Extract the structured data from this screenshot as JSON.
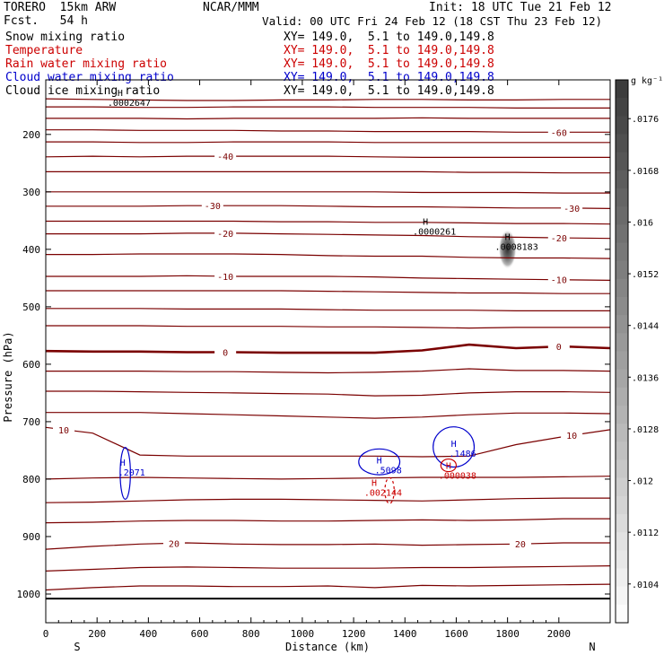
{
  "header": {
    "model": "TORERO  15km ARW",
    "fcst": "Fcst.   54 h",
    "center": "NCAR/MMM",
    "init": "Init: 18 UTC Tue 21 Feb 12",
    "valid": "Valid: 00 UTC Fri 24 Feb 12 (18 CST Thu 23 Feb 12)",
    "fields": [
      {
        "name": "Snow mixing ratio",
        "xy": "XY= 149.0,  5.1 to 149.0,149.8",
        "color": "#000000"
      },
      {
        "name": "Temperature",
        "xy": "XY= 149.0,  5.1 to 149.0,149.8",
        "color": "#cc0000"
      },
      {
        "name": "Rain water mixing ratio",
        "xy": "XY= 149.0,  5.1 to 149.0,149.8",
        "color": "#cc0000"
      },
      {
        "name": "Cloud water mixing ratio",
        "xy": "XY= 149.0,  5.1 to 149.0,149.8",
        "color": "#0000cc"
      },
      {
        "name": "Cloud ice mixing ratio",
        "xy": "XY= 149.0,  5.1 to 149.0,149.8",
        "color": "#000000"
      }
    ]
  },
  "chart_data": {
    "type": "contour",
    "xlabel": "Distance (km)",
    "ylabel": "Pressure (hPa)",
    "x_ticks": [
      "0",
      "200",
      "400",
      "600",
      "800",
      "1000",
      "1200",
      "1400",
      "1600",
      "1800",
      "2000"
    ],
    "y_ticks": [
      "200",
      "300",
      "400",
      "500",
      "600",
      "700",
      "800",
      "900",
      "1000"
    ],
    "xlim": [
      0,
      2200
    ],
    "ylim": [
      1050,
      105
    ],
    "x_end_labels": {
      "left": "S",
      "right": "N"
    },
    "colorbar": {
      "unit": "g kg⁻¹",
      "labels": [
        ".0176",
        ".0168",
        ".016",
        ".0152",
        ".0144",
        ".0136",
        ".0128",
        ".012",
        ".0112",
        ".0104"
      ],
      "values": [
        0.0176,
        0.0168,
        0.016,
        0.0152,
        0.0144,
        0.0136,
        0.0128,
        0.012,
        0.0112,
        0.0104
      ]
    },
    "temperature_contours": [
      {
        "p": [
          138,
          139,
          140,
          141,
          141,
          140,
          140,
          139,
          139,
          140,
          140,
          139,
          139
        ]
      },
      {
        "p": [
          152,
          152,
          153,
          153,
          152,
          152,
          152,
          153,
          153,
          153,
          154,
          154,
          154
        ]
      },
      {
        "p": [
          172,
          172,
          172,
          173,
          172,
          172,
          172,
          172,
          171,
          172,
          172,
          172,
          172
        ]
      },
      {
        "p": [
          192,
          192,
          193,
          193,
          193,
          194,
          194,
          195,
          195,
          195,
          196,
          196,
          196
        ],
        "label": "-60",
        "label_x": 2000
      },
      {
        "p": [
          213,
          213,
          214,
          214,
          213,
          213,
          213,
          214,
          214,
          214,
          214,
          214,
          214
        ]
      },
      {
        "p": [
          239,
          238,
          239,
          238,
          238,
          238,
          238,
          239,
          240,
          240,
          240,
          240,
          240
        ],
        "label": "-40",
        "label_x": 700
      },
      {
        "p": [
          265,
          265,
          265,
          265,
          265,
          265,
          265,
          265,
          265,
          266,
          266,
          267,
          267
        ]
      },
      {
        "p": [
          300,
          300,
          300,
          300,
          300,
          300,
          300,
          300,
          301,
          301,
          301,
          302,
          302
        ]
      },
      {
        "p": [
          325,
          325,
          325,
          324,
          324,
          324,
          325,
          326,
          326,
          327,
          328,
          328,
          329
        ],
        "label": "-30",
        "label_x": 650,
        "label2": "-30",
        "label2_x": 2050
      },
      {
        "p": [
          351,
          351,
          351,
          351,
          351,
          352,
          352,
          353,
          353,
          354,
          355,
          355,
          356
        ]
      },
      {
        "p": [
          373,
          373,
          373,
          372,
          372,
          373,
          374,
          375,
          376,
          378,
          379,
          380,
          381
        ],
        "label": "-20",
        "label_x": 700,
        "label2": "-20",
        "label2_x": 2000
      },
      {
        "p": [
          409,
          409,
          408,
          408,
          408,
          409,
          411,
          412,
          412,
          414,
          415,
          415,
          416
        ]
      },
      {
        "p": [
          447,
          447,
          447,
          446,
          447,
          447,
          447,
          448,
          450,
          451,
          452,
          453,
          454
        ],
        "label": "-10",
        "label_x": 700,
        "label2": "-10",
        "label2_x": 2000
      },
      {
        "p": [
          472,
          472,
          472,
          472,
          472,
          472,
          473,
          474,
          475,
          476,
          476,
          477,
          477
        ]
      },
      {
        "p": [
          503,
          503,
          503,
          504,
          504,
          504,
          505,
          506,
          506,
          506,
          507,
          507,
          507
        ]
      },
      {
        "p": [
          533,
          533,
          533,
          534,
          534,
          534,
          535,
          535,
          536,
          537,
          536,
          536,
          536
        ]
      },
      {
        "p": [
          577,
          578,
          578,
          579,
          579,
          580,
          580,
          580,
          576,
          566,
          572,
          569,
          572
        ],
        "label": "0",
        "label_x": 700,
        "label2": "0",
        "label2_x": 2000,
        "bold": true
      },
      {
        "p": [
          612,
          612,
          612,
          613,
          613,
          614,
          615,
          614,
          612,
          608,
          611,
          611,
          612
        ]
      },
      {
        "p": [
          647,
          647,
          648,
          649,
          650,
          651,
          652,
          655,
          654,
          650,
          648,
          648,
          649
        ]
      },
      {
        "p": [
          684,
          684,
          684,
          686,
          688,
          690,
          692,
          694,
          692,
          688,
          685,
          685,
          686
        ]
      },
      {
        "p": [
          710,
          720,
          758,
          760,
          760,
          760,
          760,
          760,
          761,
          760,
          740,
          726,
          714
        ],
        "label": "10",
        "label_x": 70,
        "label2": "10",
        "label2_x": 2050
      },
      {
        "p": [
          800,
          798,
          797,
          798,
          799,
          800,
          799,
          798,
          797,
          797,
          797,
          796,
          795
        ]
      },
      {
        "p": [
          841,
          840,
          838,
          836,
          835,
          835,
          836,
          837,
          838,
          836,
          834,
          833,
          833
        ]
      },
      {
        "p": [
          876,
          875,
          873,
          872,
          872,
          873,
          873,
          872,
          871,
          872,
          871,
          869,
          869
        ]
      },
      {
        "p": [
          922,
          917,
          913,
          911,
          913,
          914,
          914,
          913,
          915,
          914,
          913,
          911,
          911
        ],
        "label": "20",
        "label_x": 500,
        "label2": "20",
        "label2_x": 1850
      },
      {
        "p": [
          960,
          957,
          954,
          953,
          954,
          955,
          955,
          955,
          954,
          954,
          953,
          952,
          951
        ]
      },
      {
        "p": [
          993,
          989,
          986,
          986,
          987,
          987,
          986,
          989,
          985,
          986,
          985,
          984,
          983
        ]
      }
    ],
    "temperature_x": [
      0,
      183,
      367,
      550,
      733,
      917,
      1100,
      1283,
      1467,
      1650,
      1833,
      2017,
      2200
    ],
    "ground_pressure": 1008,
    "annotations": [
      {
        "label": "H",
        "value": ".0002647",
        "x": 290,
        "p": 133,
        "color": "#000000"
      },
      {
        "label": "H",
        "value": ".0000261",
        "x": 1480,
        "p": 357,
        "color": "#000000"
      },
      {
        "label": "H",
        "value": ".0008183",
        "x": 1800,
        "p": 384,
        "color": "#000000"
      },
      {
        "label": "H",
        "value": ".2071",
        "x": 300,
        "p": 777,
        "color": "#0000cc"
      },
      {
        "label": "H",
        "value": ".5098",
        "x": 1300,
        "p": 773,
        "color": "#0000cc"
      },
      {
        "label": "H",
        "value": ".002144",
        "x": 1280,
        "p": 812,
        "color": "#cc0000"
      },
      {
        "label": "H",
        "value": ".1486",
        "x": 1590,
        "p": 744,
        "color": "#0000cc"
      },
      {
        "label": "H",
        "value": ".000038",
        "x": 1570,
        "p": 782,
        "color": "#cc0000"
      }
    ],
    "ice_max": {
      "x": 1800,
      "p": 400,
      "value": ".0008183"
    },
    "grid": false
  }
}
